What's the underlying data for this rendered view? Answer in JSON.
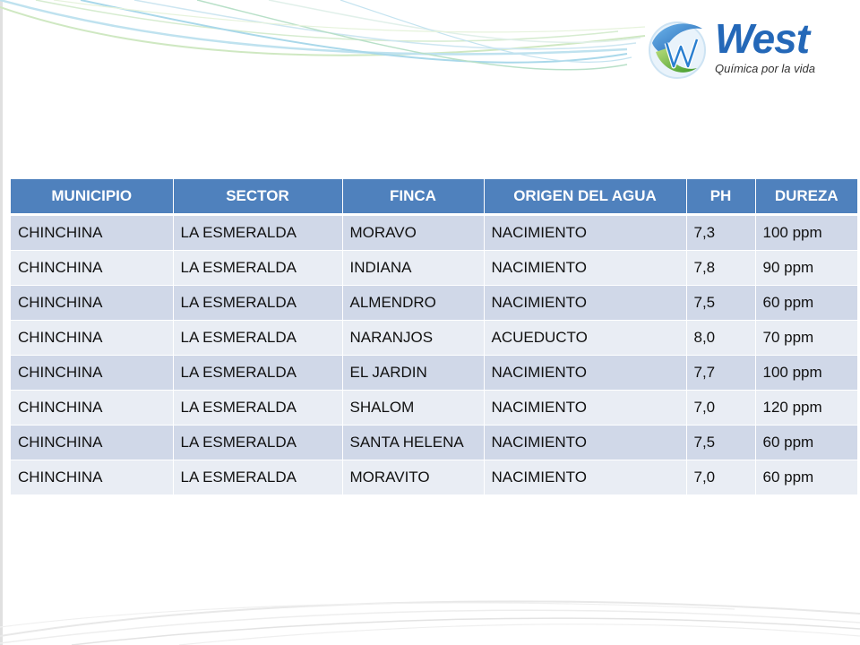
{
  "brand": {
    "name": "West",
    "tagline": "Química por la vida",
    "colors": {
      "blue": "#2468b8",
      "green": "#7cc242",
      "header": "#4f81bd",
      "row": "#d0d8e8",
      "row_alt": "#e9edf4"
    }
  },
  "table": {
    "headers": [
      "MUNICIPIO",
      "SECTOR",
      "FINCA",
      "ORIGEN DEL AGUA",
      "PH",
      "DUREZA"
    ],
    "rows": [
      [
        "CHINCHINA",
        "LA ESMERALDA",
        "MORAVO",
        "NACIMIENTO",
        "7,3",
        "100 ppm"
      ],
      [
        "CHINCHINA",
        "LA ESMERALDA",
        "INDIANA",
        "NACIMIENTO",
        "7,8",
        "90 ppm"
      ],
      [
        "CHINCHINA",
        "LA ESMERALDA",
        "ALMENDRO",
        "NACIMIENTO",
        "7,5",
        "60 ppm"
      ],
      [
        "CHINCHINA",
        "LA ESMERALDA",
        "NARANJOS",
        "ACUEDUCTO",
        "8,0",
        "70 ppm"
      ],
      [
        "CHINCHINA",
        "LA ESMERALDA",
        "EL JARDIN",
        "NACIMIENTO",
        "7,7",
        "100 ppm"
      ],
      [
        "CHINCHINA",
        "LA ESMERALDA",
        "SHALOM",
        "NACIMIENTO",
        "7,0",
        "120 ppm"
      ],
      [
        "CHINCHINA",
        "LA ESMERALDA",
        "SANTA HELENA",
        "NACIMIENTO",
        "7,5",
        "60 ppm"
      ],
      [
        "CHINCHINA",
        "LA ESMERALDA",
        "MORAVITO",
        "NACIMIENTO",
        "7,0",
        "60 ppm"
      ]
    ]
  }
}
